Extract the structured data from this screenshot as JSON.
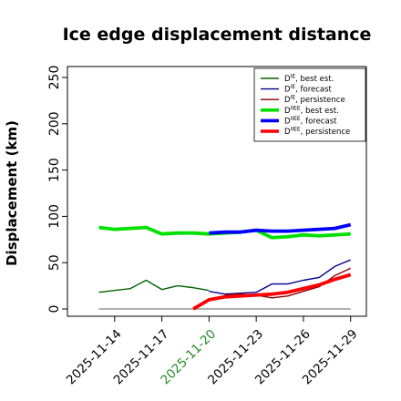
{
  "chart_data": {
    "type": "line",
    "title": "Ice edge displacement distance",
    "ylabel": "Displacement (km)",
    "xlabel": "",
    "ylim": [
      0,
      260
    ],
    "yticks": [
      0,
      50,
      100,
      150,
      200,
      250
    ],
    "xlim": [
      "2025-11-11",
      "2025-11-30"
    ],
    "xticks": [
      {
        "date": "2025-11-14",
        "label": "2025-11-14",
        "color": "#000000"
      },
      {
        "date": "2025-11-17",
        "label": "2025-11-17",
        "color": "#000000"
      },
      {
        "date": "2025-11-20",
        "label": "2025-11-20",
        "color": "#228B22"
      },
      {
        "date": "2025-11-23",
        "label": "2025-11-23",
        "color": "#000000"
      },
      {
        "date": "2025-11-26",
        "label": "2025-11-26",
        "color": "#000000"
      },
      {
        "date": "2025-11-29",
        "label": "2025-11-29",
        "color": "#000000"
      }
    ],
    "grid": false,
    "legend_position": "top-right",
    "zero_line": {
      "y": 0,
      "from": "2025-11-13",
      "to": "2025-11-29",
      "color": "#808080"
    },
    "series": [
      {
        "name": "D^IE, best est.",
        "legend_main": "D",
        "legend_sup": "IE",
        "legend_rest": ", best est.",
        "color": "#006400",
        "width": 1.4,
        "points": [
          [
            "2025-11-13",
            18
          ],
          [
            "2025-11-14",
            20
          ],
          [
            "2025-11-15",
            22
          ],
          [
            "2025-11-16",
            31
          ],
          [
            "2025-11-17",
            21
          ],
          [
            "2025-11-18",
            25
          ],
          [
            "2025-11-19",
            23
          ],
          [
            "2025-11-20",
            20
          ]
        ]
      },
      {
        "name": "D^IE, forecast",
        "legend_main": "D",
        "legend_sup": "IE",
        "legend_rest": ", forecast",
        "color": "#00008B",
        "width": 1.4,
        "points": [
          [
            "2025-11-20",
            19
          ],
          [
            "2025-11-21",
            16
          ],
          [
            "2025-11-22",
            17
          ],
          [
            "2025-11-23",
            18
          ],
          [
            "2025-11-24",
            27
          ],
          [
            "2025-11-25",
            27
          ],
          [
            "2025-11-26",
            31
          ],
          [
            "2025-11-27",
            34
          ],
          [
            "2025-11-28",
            46
          ],
          [
            "2025-11-29",
            53
          ]
        ]
      },
      {
        "name": "D^IE, persistence",
        "legend_main": "D",
        "legend_sup": "IE",
        "legend_rest": ", persistence",
        "color": "#8B0000",
        "width": 1.4,
        "points": [
          [
            "2025-11-21",
            15
          ],
          [
            "2025-11-22",
            16
          ],
          [
            "2025-11-23",
            15
          ],
          [
            "2025-11-24",
            12
          ],
          [
            "2025-11-25",
            14
          ],
          [
            "2025-11-26",
            19
          ],
          [
            "2025-11-27",
            24
          ],
          [
            "2025-11-28",
            36
          ],
          [
            "2025-11-29",
            44
          ]
        ]
      },
      {
        "name": "D^IIEE, best est.",
        "legend_main": "D",
        "legend_sup": "IIEE",
        "legend_rest": ", best est.",
        "color": "#00E000",
        "width": 3.8,
        "points": [
          [
            "2025-11-13",
            88
          ],
          [
            "2025-11-14",
            86
          ],
          [
            "2025-11-15",
            87
          ],
          [
            "2025-11-16",
            88
          ],
          [
            "2025-11-17",
            81
          ],
          [
            "2025-11-18",
            82
          ],
          [
            "2025-11-19",
            82
          ],
          [
            "2025-11-20",
            81
          ],
          [
            "2025-11-21",
            82
          ],
          [
            "2025-11-22",
            83
          ],
          [
            "2025-11-23",
            85
          ],
          [
            "2025-11-24",
            77
          ],
          [
            "2025-11-25",
            78
          ],
          [
            "2025-11-26",
            80
          ],
          [
            "2025-11-27",
            79
          ],
          [
            "2025-11-28",
            80
          ],
          [
            "2025-11-29",
            81
          ]
        ]
      },
      {
        "name": "D^IIEE, forecast",
        "legend_main": "D",
        "legend_sup": "IIEE",
        "legend_rest": ", forecast",
        "color": "#0000FF",
        "width": 3.8,
        "points": [
          [
            "2025-11-20",
            82
          ],
          [
            "2025-11-21",
            83
          ],
          [
            "2025-11-22",
            83
          ],
          [
            "2025-11-23",
            85
          ],
          [
            "2025-11-24",
            84
          ],
          [
            "2025-11-25",
            84
          ],
          [
            "2025-11-26",
            85
          ],
          [
            "2025-11-27",
            86
          ],
          [
            "2025-11-28",
            87
          ],
          [
            "2025-11-29",
            91
          ]
        ]
      },
      {
        "name": "D^IIEE, persistence",
        "legend_main": "D",
        "legend_sup": "IIEE",
        "legend_rest": ", persistence",
        "color": "#FF0000",
        "width": 3.8,
        "points": [
          [
            "2025-11-19",
            0
          ],
          [
            "2025-11-20",
            10
          ],
          [
            "2025-11-21",
            13
          ],
          [
            "2025-11-22",
            14
          ],
          [
            "2025-11-23",
            15
          ],
          [
            "2025-11-24",
            16
          ],
          [
            "2025-11-25",
            18
          ],
          [
            "2025-11-26",
            22
          ],
          [
            "2025-11-27",
            26
          ],
          [
            "2025-11-28",
            32
          ],
          [
            "2025-11-29",
            37
          ]
        ]
      }
    ]
  }
}
